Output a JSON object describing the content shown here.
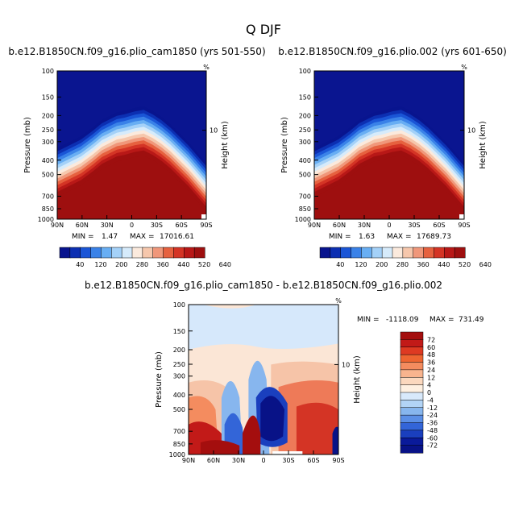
{
  "figure": {
    "title": "Q DJF",
    "left_title": "b.e12.B1850CN.f09_g16.plio_cam1850 (yrs 501-550)",
    "right_title": "b.e12.B1850CN.f09_g16.plio.002 (yrs 601-650)",
    "bottom_title": "b.e12.B1850CN.f09_g16.plio_cam1850 - b.e12.B1850CN.f09_g16.plio.002"
  },
  "chart_data": [
    {
      "type": "heatmap",
      "id": "left",
      "title": "b.e12.B1850CN.f09_g16.plio_cam1850 (yrs 501-550)",
      "xlabel": "",
      "ylabel": "Pressure (mb)",
      "y2label": "Height (km)",
      "x_ticks": [
        "90N",
        "60N",
        "30N",
        "0",
        "30S",
        "60S",
        "90S"
      ],
      "x_values": [
        90,
        60,
        30,
        0,
        -30,
        -60,
        -90
      ],
      "y_ticks": [
        100,
        150,
        200,
        250,
        300,
        400,
        500,
        700,
        850,
        1000
      ],
      "y_scale": "log",
      "ylim": [
        1000,
        100
      ],
      "y2_ticks": [
        10
      ],
      "y2_corner_label": "%",
      "min_label": "MIN =",
      "min_value": "1.47",
      "max_label": "MAX =",
      "max_value": "17016.61",
      "colorbar": {
        "orientation": "horizontal",
        "labels": [
          "40",
          "120",
          "200",
          "280",
          "360",
          "440",
          "520",
          "640"
        ]
      },
      "colors": {
        "low": "#0a1590",
        "mid": "#ffffff",
        "high": "#9e0f0f"
      }
    },
    {
      "type": "heatmap",
      "id": "right",
      "title": "b.e12.B1850CN.f09_g16.plio.002 (yrs 601-650)",
      "xlabel": "",
      "ylabel": "Pressure (mb)",
      "y2label": "Height (km)",
      "x_ticks": [
        "90N",
        "60N",
        "30N",
        "0",
        "30S",
        "60S",
        "90S"
      ],
      "x_values": [
        90,
        60,
        30,
        0,
        -30,
        -60,
        -90
      ],
      "y_ticks": [
        100,
        150,
        200,
        250,
        300,
        400,
        500,
        700,
        850,
        1000
      ],
      "y_scale": "log",
      "ylim": [
        1000,
        100
      ],
      "y2_ticks": [
        10
      ],
      "y2_corner_label": "%",
      "min_label": "MIN =",
      "min_value": "1.63",
      "max_label": "MAX =",
      "max_value": "17689.73",
      "colorbar": {
        "orientation": "horizontal",
        "labels": [
          "40",
          "120",
          "200",
          "280",
          "360",
          "440",
          "520",
          "640"
        ]
      },
      "colors": {
        "low": "#0a1590",
        "mid": "#ffffff",
        "high": "#9e0f0f"
      }
    },
    {
      "type": "heatmap",
      "id": "diff",
      "title": "b.e12.B1850CN.f09_g16.plio_cam1850 - b.e12.B1850CN.f09_g16.plio.002",
      "xlabel": "",
      "ylabel": "Pressure (mb)",
      "y2label": "Height (km)",
      "x_ticks": [
        "90N",
        "60N",
        "30N",
        "0",
        "30S",
        "60S",
        "90S"
      ],
      "x_values": [
        90,
        60,
        30,
        0,
        -30,
        -60,
        -90
      ],
      "y_ticks": [
        100,
        150,
        200,
        250,
        300,
        400,
        500,
        700,
        850,
        1000
      ],
      "y_scale": "log",
      "ylim": [
        1000,
        100
      ],
      "y2_ticks": [
        10
      ],
      "y2_corner_label": "%",
      "min_label": "MIN =",
      "min_value": "-1118.09",
      "max_label": "MAX =",
      "max_value": "731.49",
      "colorbar": {
        "orientation": "vertical",
        "labels": [
          "72",
          "60",
          "48",
          "36",
          "24",
          "12",
          "4",
          "0",
          "-4",
          "-12",
          "-24",
          "-36",
          "-48",
          "-60",
          "-72"
        ]
      },
      "colors": {
        "low": "#0a1590",
        "mid": "#ffffff",
        "high": "#9e0f0f"
      }
    }
  ]
}
